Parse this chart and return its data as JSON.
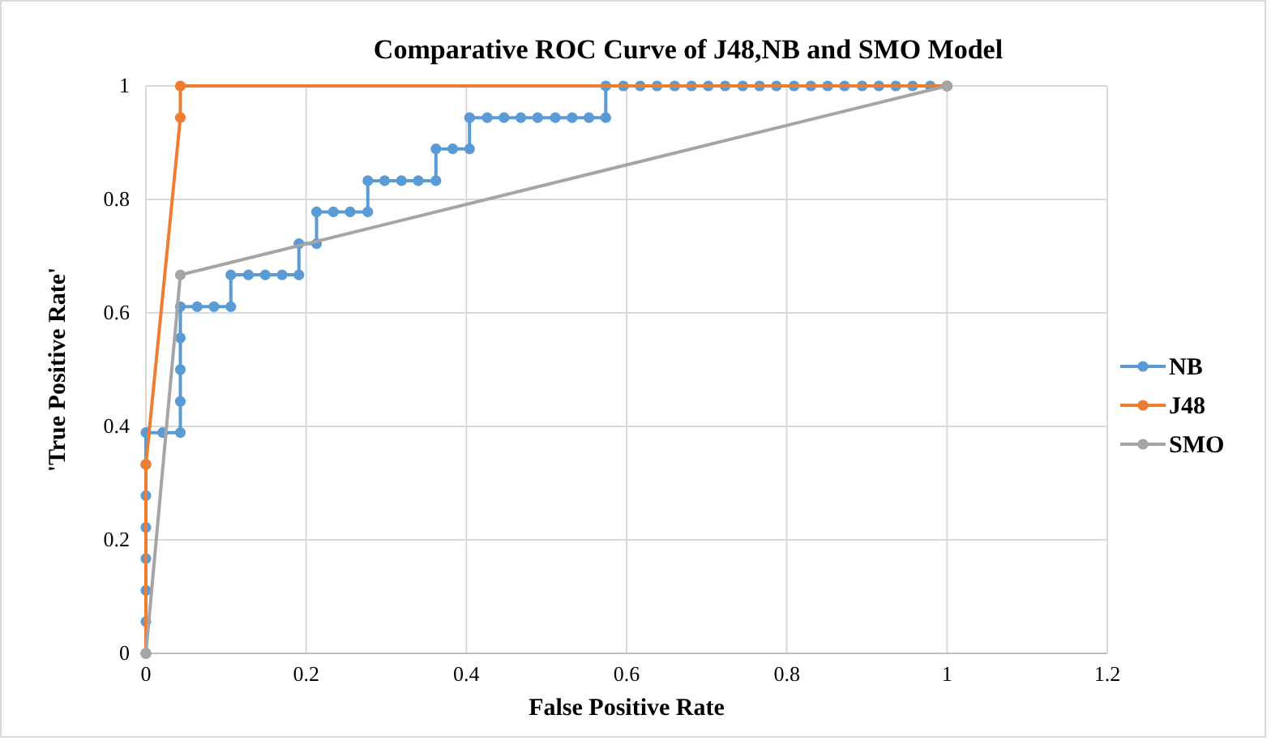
{
  "chart_data": {
    "type": "line",
    "title": "Comparative ROC Curve of J48,NB and SMO Model",
    "xlabel": "False Positive Rate",
    "ylabel": "'True Positive Rate'",
    "xlim": [
      0,
      1.2
    ],
    "xticks": [
      0,
      0.2,
      0.4,
      0.6,
      0.8,
      1,
      1.2
    ],
    "ylim": [
      0,
      1
    ],
    "yticks": [
      0,
      0.2,
      0.4,
      0.6,
      0.8,
      1
    ],
    "grid": true,
    "legend": "right",
    "marker": "circle",
    "series": [
      {
        "name": "NB",
        "color": "#5b9bd5",
        "x": [
          0,
          0,
          0,
          0,
          0,
          0,
          0,
          0,
          0.021,
          0.043,
          0.043,
          0.043,
          0.043,
          0.043,
          0.064,
          0.085,
          0.106,
          0.106,
          0.128,
          0.149,
          0.17,
          0.191,
          0.191,
          0.213,
          0.213,
          0.234,
          0.255,
          0.277,
          0.277,
          0.298,
          0.319,
          0.34,
          0.362,
          0.362,
          0.383,
          0.404,
          0.404,
          0.426,
          0.447,
          0.468,
          0.489,
          0.511,
          0.532,
          0.553,
          0.574,
          0.574,
          0.596,
          0.617,
          0.638,
          0.66,
          0.681,
          0.702,
          0.723,
          0.745,
          0.766,
          0.787,
          0.809,
          0.83,
          0.851,
          0.872,
          0.894,
          0.915,
          0.936,
          0.957,
          0.979,
          1
        ],
        "values": [
          0,
          0.056,
          0.111,
          0.167,
          0.222,
          0.278,
          0.333,
          0.389,
          0.389,
          0.389,
          0.444,
          0.5,
          0.556,
          0.611,
          0.611,
          0.611,
          0.611,
          0.667,
          0.667,
          0.667,
          0.667,
          0.667,
          0.722,
          0.722,
          0.778,
          0.778,
          0.778,
          0.778,
          0.833,
          0.833,
          0.833,
          0.833,
          0.833,
          0.889,
          0.889,
          0.889,
          0.944,
          0.944,
          0.944,
          0.944,
          0.944,
          0.944,
          0.944,
          0.944,
          0.944,
          1,
          1,
          1,
          1,
          1,
          1,
          1,
          1,
          1,
          1,
          1,
          1,
          1,
          1,
          1,
          1,
          1,
          1,
          1,
          1,
          1
        ]
      },
      {
        "name": "J48",
        "color": "#ed7d31",
        "x": [
          0,
          0,
          0.043,
          0.043,
          1
        ],
        "values": [
          0,
          0.333,
          0.944,
          1,
          1
        ]
      },
      {
        "name": "SMO",
        "color": "#a5a5a5",
        "x": [
          0,
          0.043,
          1
        ],
        "values": [
          0,
          0.667,
          1
        ]
      }
    ]
  }
}
